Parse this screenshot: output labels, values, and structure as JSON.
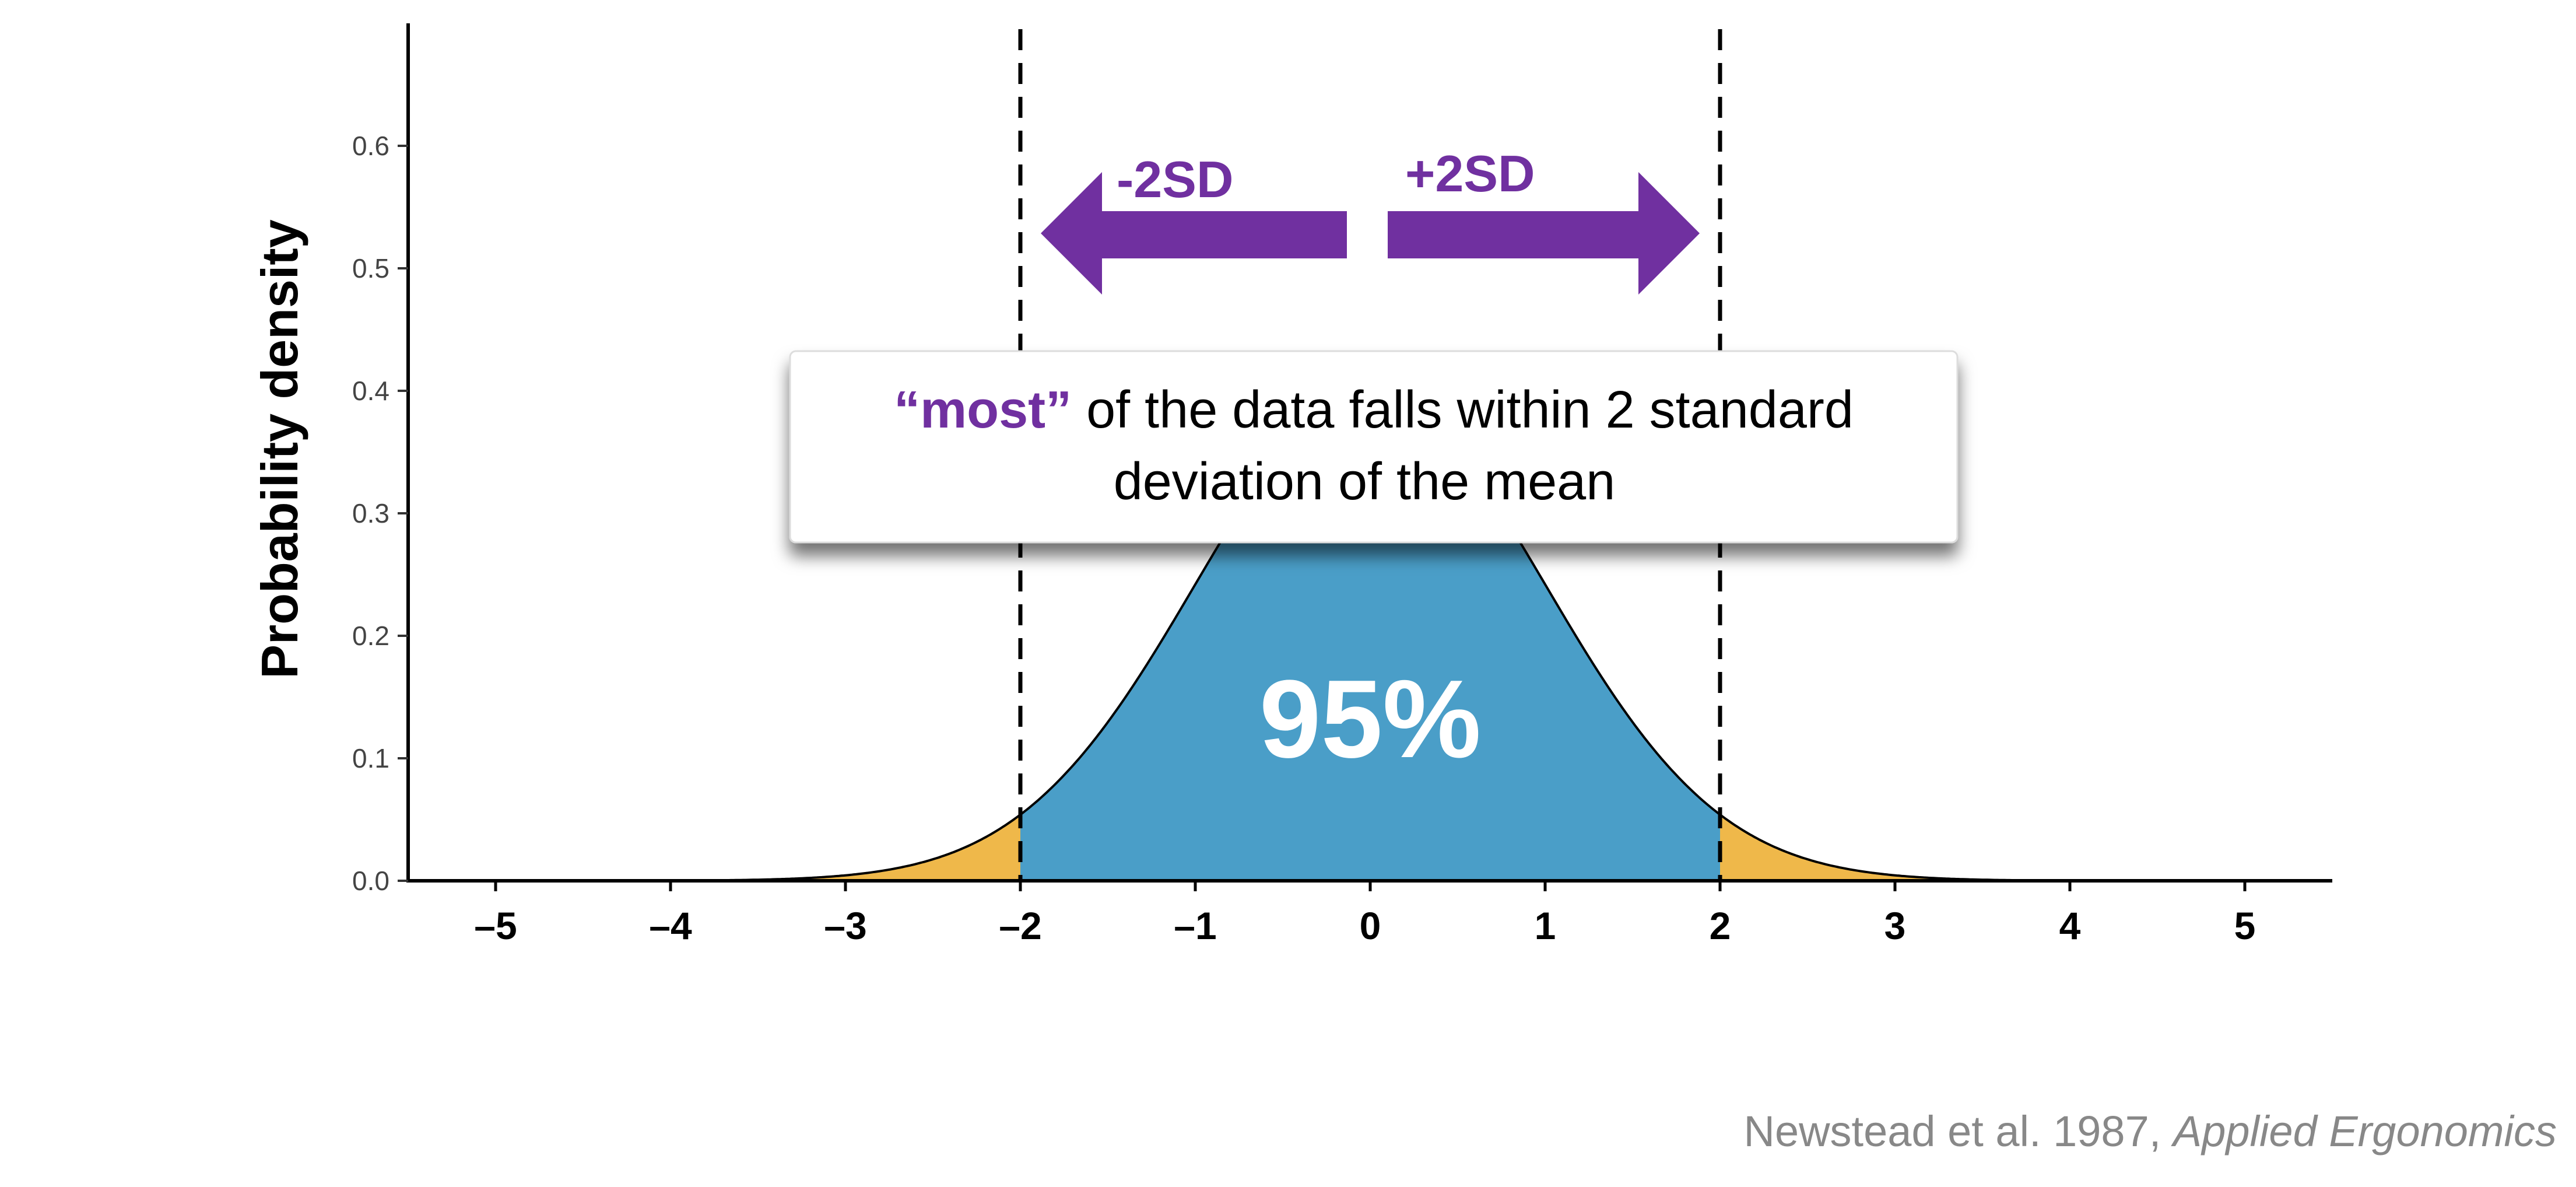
{
  "colors": {
    "center_fill": "#4a9ec8",
    "tail_fill": "#efb84a",
    "accent": "#7030a0",
    "axis": "#000000"
  },
  "annotation": {
    "left_arrow_label": "-2SD",
    "right_arrow_label": "+2SD",
    "center_label": "95%",
    "note_emphasis": "“most”",
    "note_line1_rest": " of the data falls within 2 standard",
    "note_line2": "deviation of the mean"
  },
  "source": {
    "text": "Newstead et al. 1987, ",
    "journal": "Applied Ergonomics"
  },
  "chart_data": {
    "type": "area",
    "distribution": "normal",
    "mean": 0,
    "sd": 1,
    "xlim": [
      -5.5,
      5.5
    ],
    "ylim": [
      0,
      0.7
    ],
    "x_ticks": [
      -5,
      -4,
      -3,
      -2,
      -1,
      0,
      1,
      2,
      3,
      4,
      5
    ],
    "x_tick_labels": [
      "–5",
      "–4",
      "–3",
      "–2",
      "–1",
      "0",
      "1",
      "2",
      "3",
      "4",
      "5"
    ],
    "y_ticks": [
      0.0,
      0.1,
      0.2,
      0.3,
      0.4,
      0.5,
      0.6
    ],
    "y_tick_labels": [
      "0.0",
      "0.1",
      "0.2",
      "0.3",
      "0.4",
      "0.5",
      "0.6"
    ],
    "ylabel": "Probability density",
    "xlabel": "",
    "regions": [
      {
        "from": -5.5,
        "to": -2,
        "role": "tail"
      },
      {
        "from": -2,
        "to": 2,
        "role": "center",
        "percent": 95
      },
      {
        "from": 2,
        "to": 5.5,
        "role": "tail"
      }
    ],
    "reference_lines": [
      -2,
      2
    ],
    "grid": false
  }
}
